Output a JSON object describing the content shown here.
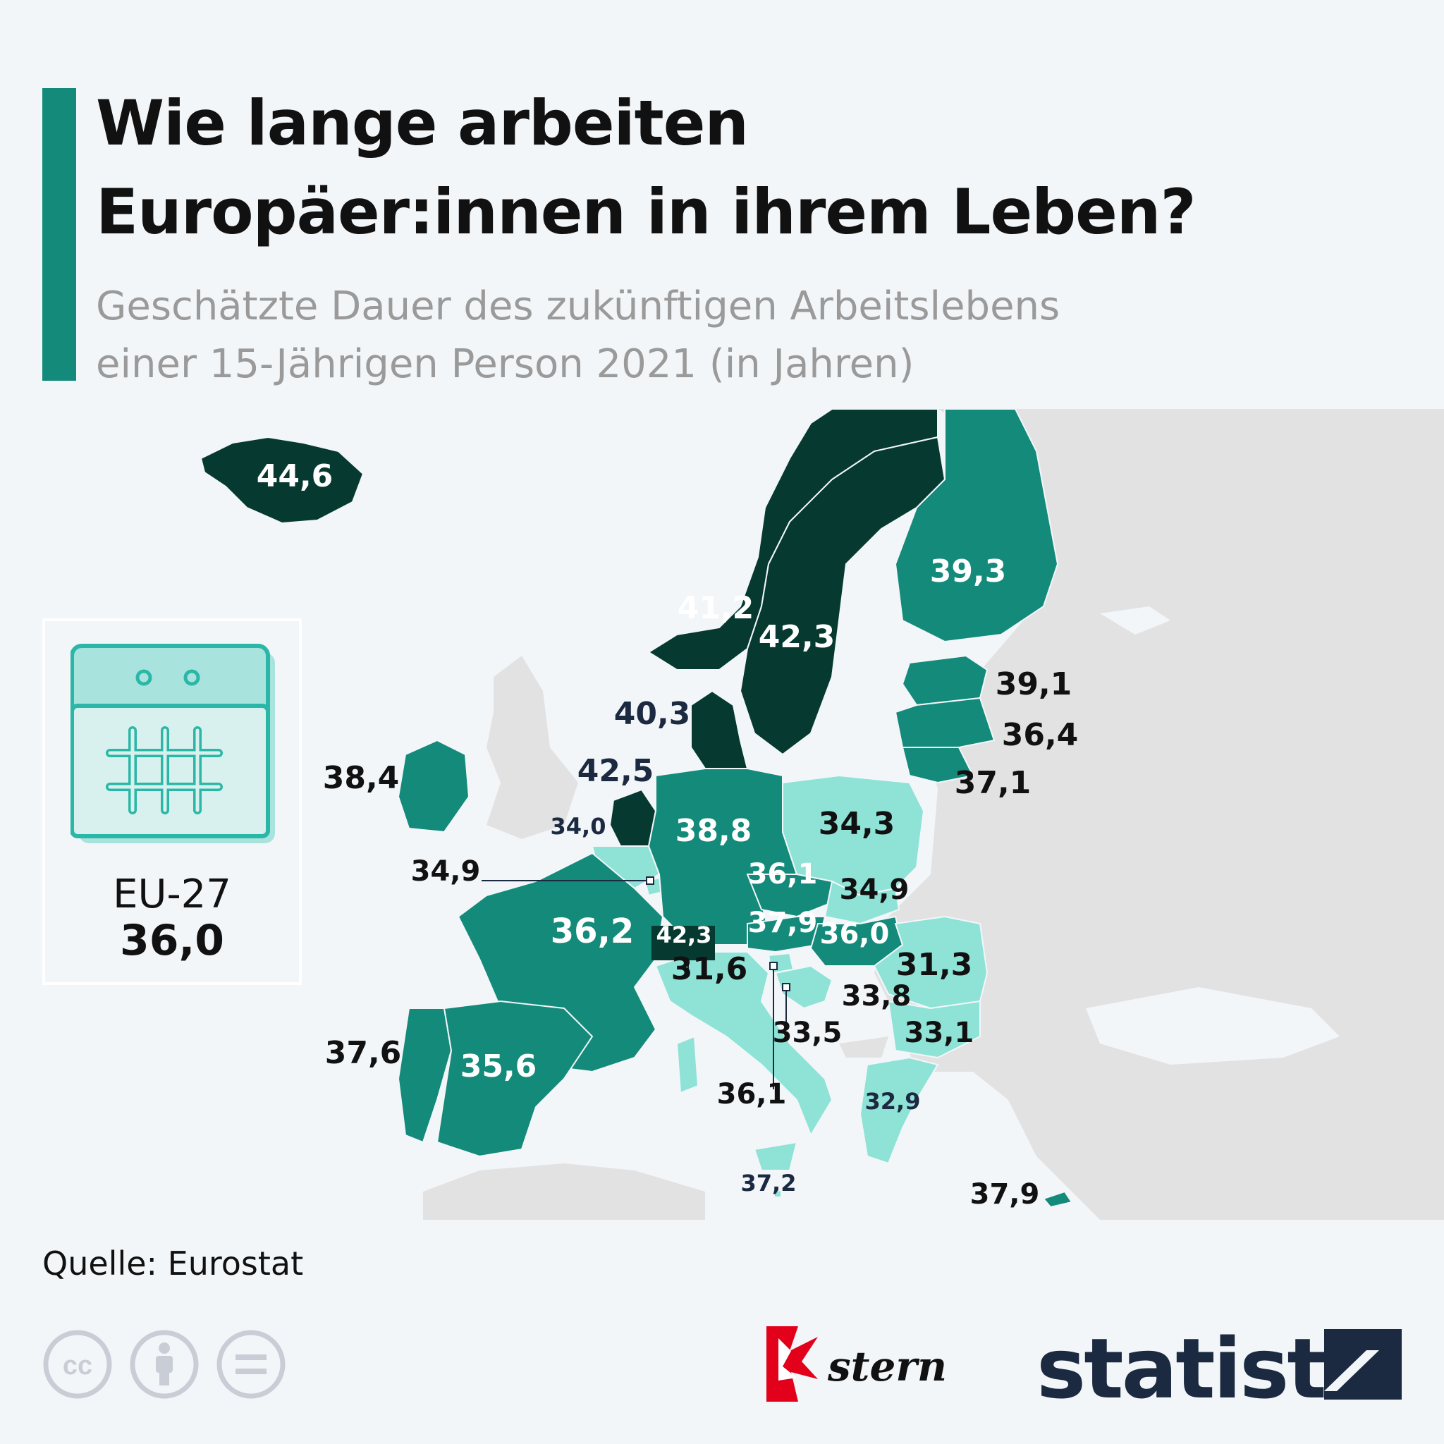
{
  "header": {
    "title_line1": "Wie lange arbeiten",
    "title_line2": "Europäer:innen in ihrem Leben?",
    "subtitle_line1": "Geschätzte Dauer des zukünftigen Arbeitslebens",
    "subtitle_line2": "einer 15-Jährigen Person 2021 (in Jahren)"
  },
  "colors": {
    "accent": "#138a7a",
    "dark": "#063a31",
    "medium": "#138a7a",
    "light": "#8ee3d6",
    "non_eu": "#e2e2e2",
    "sea": "#f3f6f9"
  },
  "eu_summary": {
    "label": "EU-27",
    "value": "36,0",
    "icon": "calendar-icon"
  },
  "map_data": {
    "type": "choropleth",
    "unit": "Jahre",
    "values": [
      {
        "label": "44,6",
        "value": 44.6
      },
      {
        "label": "41,2",
        "value": 41.2
      },
      {
        "label": "42,3",
        "value": 42.3
      },
      {
        "label": "39,3",
        "value": 39.3
      },
      {
        "label": "39,1",
        "value": 39.1
      },
      {
        "label": "36,4",
        "value": 36.4
      },
      {
        "label": "37,1",
        "value": 37.1
      },
      {
        "label": "40,3",
        "value": 40.3
      },
      {
        "label": "42,5",
        "value": 42.5
      },
      {
        "label": "38,4",
        "value": 38.4
      },
      {
        "label": "34,0",
        "value": 34.0
      },
      {
        "label": "34,9",
        "value": 34.9
      },
      {
        "label": "38,8",
        "value": 38.8
      },
      {
        "label": "34,3",
        "value": 34.3
      },
      {
        "label": "36,1",
        "value": 36.1
      },
      {
        "label": "34,9",
        "value": 34.9
      },
      {
        "label": "36,2",
        "value": 36.2
      },
      {
        "label": "42,3",
        "value": 42.3
      },
      {
        "label": "37,9",
        "value": 37.9
      },
      {
        "label": "36,0",
        "value": 36.0
      },
      {
        "label": "31,6",
        "value": 31.6
      },
      {
        "label": "31,3",
        "value": 31.3
      },
      {
        "label": "33,8",
        "value": 33.8
      },
      {
        "label": "33,5",
        "value": 33.5
      },
      {
        "label": "33,1",
        "value": 33.1
      },
      {
        "label": "37,6",
        "value": 37.6
      },
      {
        "label": "35,6",
        "value": 35.6
      },
      {
        "label": "36,1",
        "value": 36.1
      },
      {
        "label": "32,9",
        "value": 32.9
      },
      {
        "label": "37,2",
        "value": 37.2
      },
      {
        "label": "37,9",
        "value": 37.9
      }
    ]
  },
  "footer": {
    "source": "Quelle: Eurostat",
    "license_icons": [
      "cc-icon",
      "attribution-icon",
      "no-derivatives-icon"
    ],
    "brand1": "stern",
    "brand2": "statista"
  }
}
